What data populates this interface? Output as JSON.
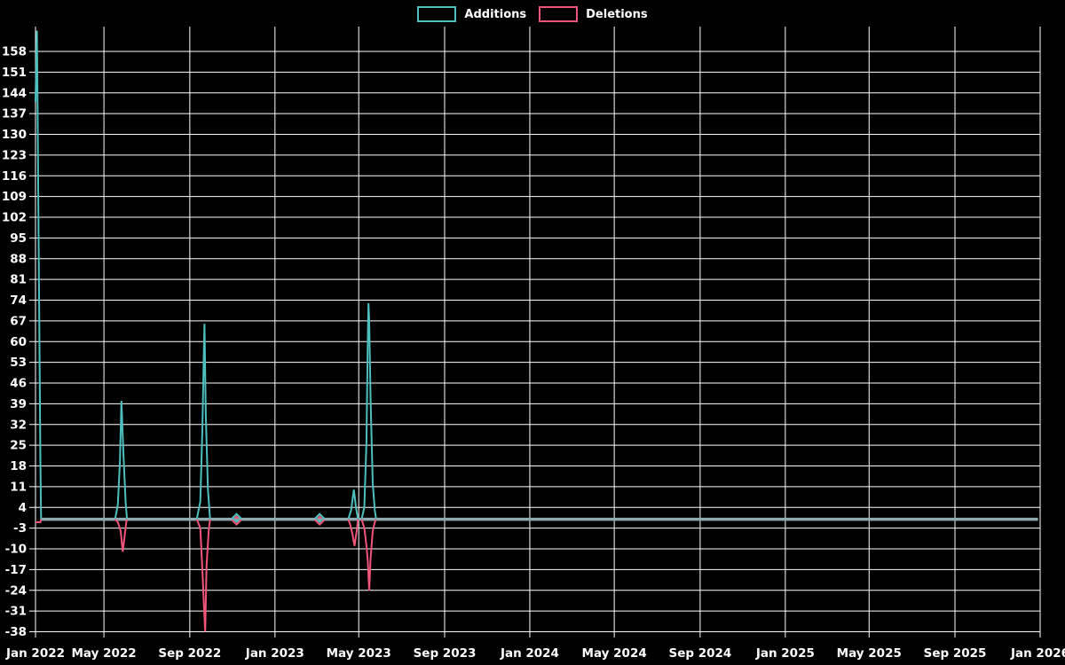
{
  "chart_data": {
    "type": "line",
    "title": "",
    "background_color": "#000000",
    "grid_color": "#ffffff",
    "text_color": "#ffffff",
    "legend": [
      {
        "label": "Additions",
        "color": "#4EBFBF"
      },
      {
        "label": "Deletions",
        "color": "#F2557A"
      }
    ],
    "baseline_color": "#8FA9B1",
    "x_axis": {
      "start": "2022-01-23",
      "end": "2026-01-01",
      "ticks": [
        {
          "date": "2022-01-23",
          "label": "Jan 2022"
        },
        {
          "date": "2022-05-01",
          "label": "May 2022"
        },
        {
          "date": "2022-09-01",
          "label": "Sep 2022"
        },
        {
          "date": "2023-01-01",
          "label": "Jan 2023"
        },
        {
          "date": "2023-05-01",
          "label": "May 2023"
        },
        {
          "date": "2023-09-01",
          "label": "Sep 2023"
        },
        {
          "date": "2024-01-01",
          "label": "Jan 2024"
        },
        {
          "date": "2024-05-01",
          "label": "May 2024"
        },
        {
          "date": "2024-09-01",
          "label": "Sep 2024"
        },
        {
          "date": "2025-01-01",
          "label": "Jan 2025"
        },
        {
          "date": "2025-05-01",
          "label": "May 2025"
        },
        {
          "date": "2025-09-01",
          "label": "Sep 2025"
        },
        {
          "date": "2026-01-01",
          "label": "Jan 2026"
        }
      ]
    },
    "y_axis": {
      "tick_min": -38,
      "tick_max": 158,
      "tick_step": 7,
      "range_min": -38.45,
      "range_max": 166.4,
      "grid": true
    },
    "series": [
      {
        "name": "Additions",
        "color": "#4EBFBF",
        "segments": [
          [
            [
              "2022-01-23",
              141
            ],
            [
              "2022-01-25",
              165
            ],
            [
              "2022-01-26",
              138
            ],
            [
              "2022-01-27",
              110
            ],
            [
              "2022-01-28",
              80
            ],
            [
              "2022-01-30",
              20
            ],
            [
              "2022-01-31",
              0
            ]
          ],
          [
            [
              "2022-05-17",
              0
            ],
            [
              "2022-05-21",
              5
            ],
            [
              "2022-05-24",
              20
            ],
            [
              "2022-05-26",
              40
            ],
            [
              "2022-05-29",
              22
            ],
            [
              "2022-06-01",
              6
            ],
            [
              "2022-06-03",
              0
            ]
          ],
          [
            [
              "2022-09-11",
              0
            ],
            [
              "2022-09-16",
              6
            ],
            [
              "2022-09-19",
              30
            ],
            [
              "2022-09-21",
              55
            ],
            [
              "2022-09-22",
              66
            ],
            [
              "2022-09-24",
              35
            ],
            [
              "2022-09-27",
              10
            ],
            [
              "2022-09-30",
              0
            ]
          ],
          [
            [
              "2023-04-16",
              0
            ],
            [
              "2023-04-20",
              3
            ],
            [
              "2023-04-24",
              10
            ],
            [
              "2023-04-27",
              4
            ],
            [
              "2023-04-30",
              0
            ]
          ],
          [
            [
              "2023-05-05",
              0
            ],
            [
              "2023-05-09",
              4
            ],
            [
              "2023-05-12",
              26
            ],
            [
              "2023-05-14",
              60
            ],
            [
              "2023-05-15",
              73
            ],
            [
              "2023-05-16",
              67
            ],
            [
              "2023-05-18",
              40
            ],
            [
              "2023-05-21",
              12
            ],
            [
              "2023-05-24",
              3
            ],
            [
              "2023-05-26",
              0
            ]
          ]
        ]
      },
      {
        "name": "Deletions",
        "color": "#F2557A",
        "segments": [
          [
            [
              "2022-01-23",
              -1
            ],
            [
              "2022-01-30",
              -1
            ],
            [
              "2022-01-31",
              0
            ]
          ],
          [
            [
              "2022-05-17",
              0
            ],
            [
              "2022-05-21",
              -1
            ],
            [
              "2022-05-25",
              -4
            ],
            [
              "2022-05-28",
              -11
            ],
            [
              "2022-05-31",
              -5
            ],
            [
              "2022-06-02",
              -1
            ],
            [
              "2022-06-03",
              0
            ]
          ],
          [
            [
              "2022-09-11",
              0
            ],
            [
              "2022-09-16",
              -3
            ],
            [
              "2022-09-19",
              -17
            ],
            [
              "2022-09-21",
              -28
            ],
            [
              "2022-09-23",
              -38
            ],
            [
              "2022-09-25",
              -16
            ],
            [
              "2022-09-28",
              -4
            ],
            [
              "2022-09-30",
              0
            ]
          ],
          [
            [
              "2023-04-16",
              0
            ],
            [
              "2023-04-19",
              -2
            ],
            [
              "2023-04-22",
              -5
            ],
            [
              "2023-04-25",
              -9
            ],
            [
              "2023-04-28",
              -4
            ],
            [
              "2023-04-30",
              0
            ]
          ],
          [
            [
              "2023-05-05",
              0
            ],
            [
              "2023-05-09",
              -3
            ],
            [
              "2023-05-12",
              -9
            ],
            [
              "2023-05-14",
              -14
            ],
            [
              "2023-05-16",
              -24
            ],
            [
              "2023-05-18",
              -13
            ],
            [
              "2023-05-21",
              -4
            ],
            [
              "2023-05-24",
              -1
            ],
            [
              "2023-05-26",
              0
            ]
          ]
        ]
      }
    ],
    "baseline": {
      "value": 0,
      "from": "2022-01-31",
      "to": "2025-12-29"
    },
    "zero_markers": {
      "shape": "diamond",
      "value": 0,
      "dates": [
        "2022-11-07",
        "2023-03-06"
      ]
    }
  }
}
